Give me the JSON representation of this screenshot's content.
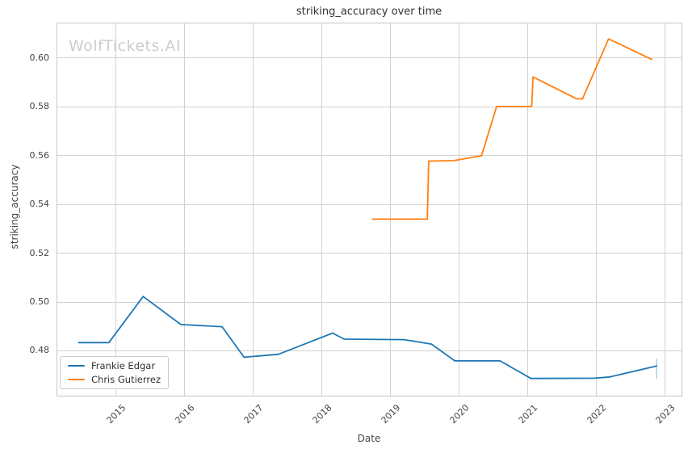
{
  "watermark": "WolfTickets.AI",
  "colors": {
    "grid": "#d2d2d2",
    "border": "#c6c6c6",
    "series_blue": "#1f77b4",
    "series_orange": "#ff7f0e",
    "end_cap_blue": "rgba(31,119,180,0.45)"
  },
  "chart_data": {
    "type": "line",
    "title": "striking_accuracy over time",
    "xlabel": "Date",
    "ylabel": "striking_accuracy",
    "xlim": [
      2014.138,
      2023.247
    ],
    "ylim": [
      0.4612,
      0.6143
    ],
    "grid": true,
    "legend_position": "lower-left",
    "x_ticks": [
      2015,
      2016,
      2017,
      2018,
      2019,
      2020,
      2021,
      2022,
      2023
    ],
    "x_tick_labels": [
      "2015",
      "2016",
      "2017",
      "2018",
      "2019",
      "2020",
      "2021",
      "2022",
      "2023"
    ],
    "y_ticks": [
      0.48,
      0.5,
      0.52,
      0.54,
      0.56,
      0.58,
      0.6
    ],
    "y_tick_labels": [
      "0.48",
      "0.50",
      "0.52",
      "0.54",
      "0.56",
      "0.58",
      "0.60"
    ],
    "series": [
      {
        "name": "Frankie Edgar",
        "color": "#1f77b4",
        "points": [
          [
            2014.46,
            0.4832
          ],
          [
            2014.9,
            0.4832
          ],
          [
            2015.4,
            0.5021
          ],
          [
            2015.95,
            0.4906
          ],
          [
            2016.55,
            0.4897
          ],
          [
            2016.87,
            0.4772
          ],
          [
            2017.37,
            0.4784
          ],
          [
            2018.16,
            0.4871
          ],
          [
            2018.33,
            0.4846
          ],
          [
            2019.2,
            0.4844
          ],
          [
            2019.6,
            0.4826
          ],
          [
            2019.94,
            0.4757
          ],
          [
            2020.6,
            0.4757
          ],
          [
            2021.05,
            0.4685
          ],
          [
            2021.97,
            0.4686
          ],
          [
            2022.2,
            0.4691
          ],
          [
            2022.88,
            0.4736
          ]
        ]
      },
      {
        "name": "Chris Gutierrez",
        "color": "#ff7f0e",
        "points": [
          [
            2018.74,
            0.5338
          ],
          [
            2019.54,
            0.5338
          ],
          [
            2019.56,
            0.5576
          ],
          [
            2019.93,
            0.5578
          ],
          [
            2020.33,
            0.5598
          ],
          [
            2020.55,
            0.58
          ],
          [
            2021.06,
            0.58
          ],
          [
            2021.08,
            0.5921
          ],
          [
            2021.71,
            0.5832
          ],
          [
            2021.8,
            0.5831
          ],
          [
            2022.18,
            0.6077
          ],
          [
            2022.81,
            0.5993
          ]
        ]
      }
    ],
    "end_marker": {
      "series": "Frankie Edgar",
      "x": 2022.88,
      "y_low": 0.4682,
      "y_high": 0.4766
    }
  }
}
